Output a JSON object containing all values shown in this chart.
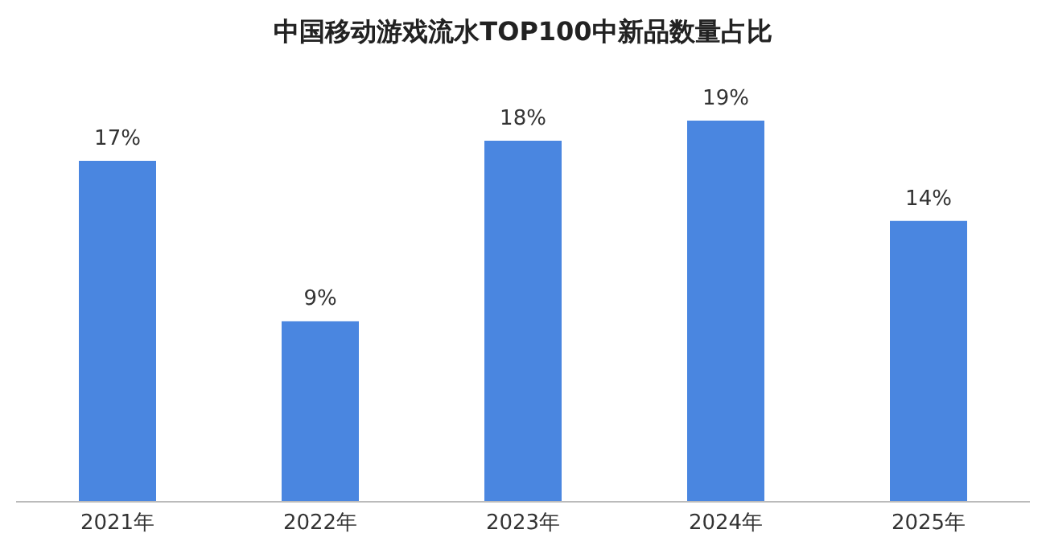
{
  "chart_data": {
    "type": "bar",
    "title": "中国移动游戏流水TOP100中新品数量占比",
    "categories": [
      "2021年",
      "2022年",
      "2023年",
      "2024年",
      "2025年"
    ],
    "values": [
      17,
      9,
      18,
      19,
      14
    ],
    "value_labels": [
      "17%",
      "9%",
      "18%",
      "19%",
      "14%"
    ],
    "color": "#4a86e0"
  }
}
